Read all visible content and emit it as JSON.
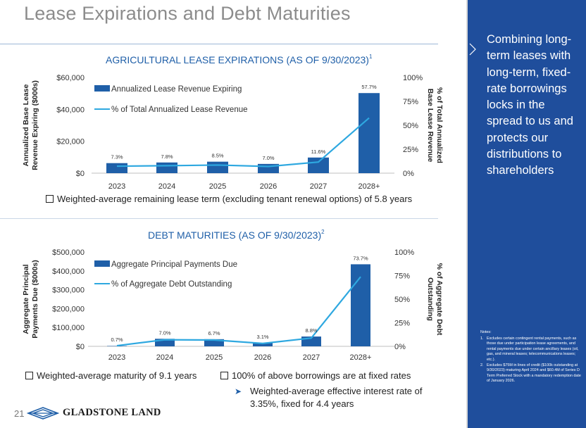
{
  "page": {
    "title": "Lease Expirations and Debt Maturities",
    "page_number": "21",
    "logo_text": "GLADSTONE LAND"
  },
  "sidebar": {
    "text": "Combining long-term leases with long-term, fixed-rate borrowings locks in the spread to us and protects our distributions to shareholders",
    "notes_title": "Notes:",
    "notes": [
      {
        "num": "1.",
        "text": "Excludes certain contingent rental payments, such as those due under participation lease agreements, and rental payments due under certain ancillary leases (oil, gas, and mineral leases; telecommunications leases; etc.)."
      },
      {
        "num": "2.",
        "text": "Excludes $75M in lines of credit ($100k outstanding at 9/30/2023) maturing April 2024 and $60.4M of Series D Term Preferred Stock with a mandatory redemption date of January 2026."
      }
    ]
  },
  "bullets": {
    "lease_term": "Weighted-average remaining lease term (excluding tenant renewal options) of 5.8 years",
    "debt_maturity": "Weighted-average maturity of 9.1 years",
    "fixed_rate": "100% of above borrowings are at fixed rates",
    "interest_rate": "Weighted-average effective interest rate of 3.35%, fixed for 4.4 years"
  },
  "colors": {
    "bar": "#1f5fa8",
    "line": "#2ea8e0",
    "sidebar": "#1f4e9c",
    "title_blue": "#1f5fa8"
  },
  "chart_data": [
    {
      "type": "bar",
      "title": "AGRICULTURAL LEASE EXPIRATIONS (AS OF 9/30/2023)",
      "title_footnote": "1",
      "categories": [
        "2023",
        "2024",
        "2025",
        "2026",
        "2027",
        "2028+"
      ],
      "series": [
        {
          "name": "Annualized Lease Revenue Expiring",
          "type": "bar",
          "axis": "left",
          "values": [
            6300,
            6700,
            7200,
            5800,
            9800,
            50200
          ]
        },
        {
          "name": "% of Total Annualized Lease Revenue",
          "type": "line",
          "axis": "right",
          "values": [
            7.3,
            7.8,
            8.5,
            7.0,
            11.6,
            57.7
          ],
          "labels": [
            "7.3%",
            "7.8%",
            "8.5%",
            "7.0%",
            "11.6%",
            "57.7%"
          ]
        }
      ],
      "ylabel": "Annualized Base Lease Revenue Expiring ($000s)",
      "ylabel_lines": [
        "Annualized Base Lease",
        "Revenue Expiring ($000s)"
      ],
      "y2label_lines": [
        "% of Total Annualized",
        "Base Lease Revenue"
      ],
      "ylim": [
        0,
        60000
      ],
      "yticks": [
        "$0",
        "$20,000",
        "$40,000",
        "$60,000"
      ],
      "y2lim": [
        0,
        100
      ],
      "y2ticks": [
        "0%",
        "25%",
        "50%",
        "75%",
        "100%"
      ]
    },
    {
      "type": "bar",
      "title": "DEBT MATURITIES (AS OF 9/30/2023)",
      "title_footnote": "2",
      "categories": [
        "2023",
        "2024",
        "2025",
        "2026",
        "2027",
        "2028+"
      ],
      "series": [
        {
          "name": "Aggregate Principal Payments Due",
          "type": "bar",
          "axis": "left",
          "values": [
            2000,
            40000,
            38000,
            18000,
            52000,
            435000
          ]
        },
        {
          "name": "% of Aggregate Debt Outstanding",
          "type": "line",
          "axis": "right",
          "values": [
            0.7,
            7.0,
            6.7,
            3.1,
            8.8,
            73.7
          ],
          "labels": [
            "0.7%",
            "7.0%",
            "6.7%",
            "3.1%",
            "8.8%",
            "73.7%"
          ]
        }
      ],
      "ylabel": "Aggregate Principal Payments Due ($000s)",
      "ylabel_lines": [
        "Aggregate Principal",
        "Payments Due ($000s)"
      ],
      "y2label_lines": [
        "% of Aggregate Debt",
        "Outstanding"
      ],
      "ylim": [
        0,
        500000
      ],
      "yticks": [
        "$0",
        "$100,000",
        "$200,000",
        "$300,000",
        "$400,000",
        "$500,000"
      ],
      "y2lim": [
        0,
        100
      ],
      "y2ticks": [
        "0%",
        "25%",
        "50%",
        "75%",
        "100%"
      ]
    }
  ]
}
